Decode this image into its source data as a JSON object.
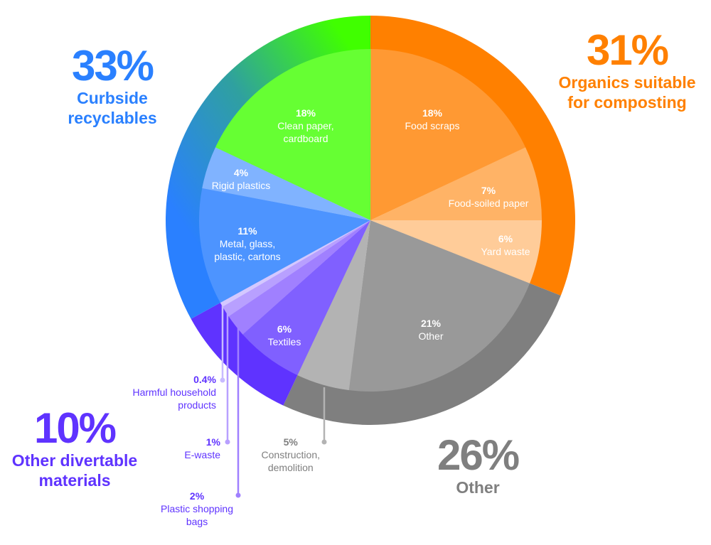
{
  "chart_data": {
    "type": "pie",
    "subtype": "nested donut",
    "start": "top, clockwise",
    "groups": [
      {
        "name": "Organics suitable for composting",
        "value": 31,
        "label": "31%",
        "color": "#FF8000",
        "slices": [
          {
            "name": "Food scraps",
            "value": 18,
            "label": "18%",
            "color": "#FF9933"
          },
          {
            "name": "Food-soiled paper",
            "value": 7,
            "label": "7%",
            "color": "#FFB366"
          },
          {
            "name": "Yard waste",
            "value": 6,
            "label": "6%",
            "color": "#FFCC99"
          }
        ]
      },
      {
        "name": "Other",
        "value": 26,
        "label": "26%",
        "color": "#7F7F7F",
        "slices": [
          {
            "name": "Other",
            "value": 21,
            "label": "21%",
            "color": "#999999"
          },
          {
            "name": "Construction, demolition",
            "value": 5,
            "label": "5%",
            "color": "#B3B3B3"
          }
        ]
      },
      {
        "name": "Other divertable materials",
        "value": 10,
        "label": "10%",
        "color": "#5F33FF",
        "slices": [
          {
            "name": "Textiles",
            "value": 6,
            "label": "6%",
            "color": "#8060FF"
          },
          {
            "name": "Plastic shopping bags",
            "value": 2,
            "label": "2%",
            "color": "#A080FF"
          },
          {
            "name": "E-waste",
            "value": 1,
            "label": "1%",
            "color": "#B8A0FF"
          },
          {
            "name": "Harmful household products",
            "value": 0.4,
            "label": "0.4%",
            "color": "#D4C8FF"
          }
        ]
      },
      {
        "name": "Curbside recyclables",
        "value": 33,
        "label": "33%",
        "color": "#2A80FF",
        "slices": [
          {
            "name": "Metal, glass, plastic, cartons",
            "value": 11,
            "label": "11%",
            "color": "#4D94FF"
          },
          {
            "name": "Rigid plastics",
            "value": 4,
            "label": "4%",
            "color": "#80B3FF"
          },
          {
            "name": "Clean paper, cardboard",
            "value": 18,
            "label": "18%",
            "color": "#66FF33"
          }
        ]
      }
    ],
    "texts": {
      "food_scraps": "Food scraps",
      "food_soiled_paper": "Food-soiled paper",
      "yard_waste": "Yard waste",
      "other_inner": "Other",
      "construction": [
        "Construction,",
        "demolition"
      ],
      "textiles": "Textiles",
      "plastic_bags": [
        "Plastic shopping",
        "bags"
      ],
      "e_waste": "E-waste",
      "harmful": [
        "Harmful household",
        "products"
      ],
      "metal": [
        "Metal, glass,",
        "plastic, cartons"
      ],
      "rigid": "Rigid plastics",
      "clean_paper": [
        "Clean paper,",
        "cardboard"
      ],
      "organics": [
        "Organics suitable",
        "for composting"
      ],
      "other_group": "Other",
      "divertable": [
        "Other divertable",
        "materials"
      ],
      "curbside": [
        "Curbside",
        "recyclables"
      ]
    },
    "curbside_ring_gradient": [
      "#2A80FF",
      "#40FF00"
    ]
  }
}
